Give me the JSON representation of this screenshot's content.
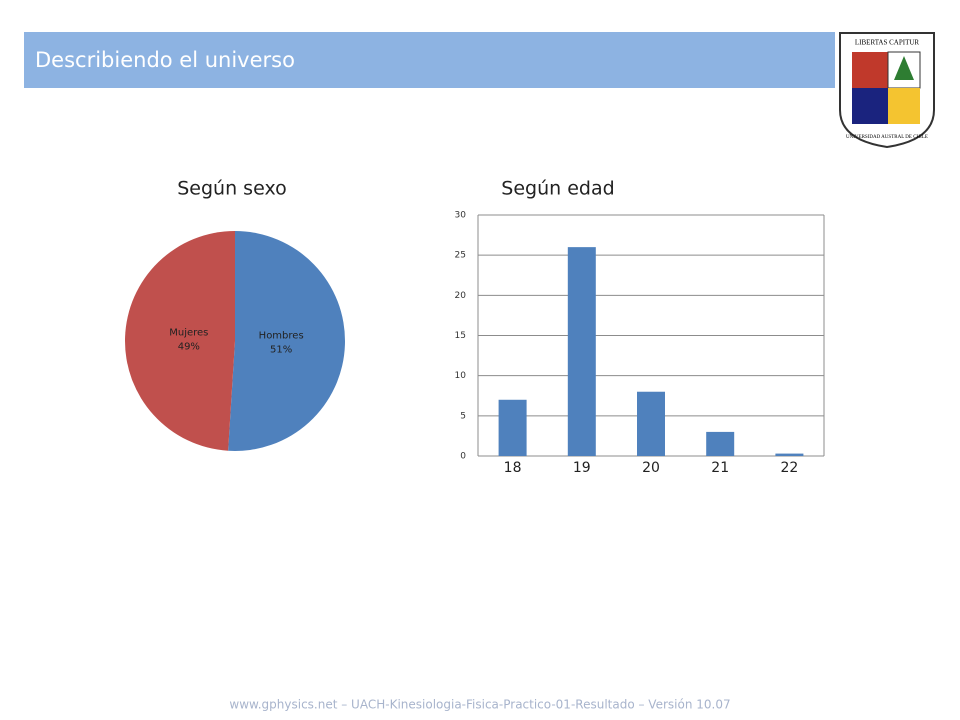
{
  "header": {
    "title": "Describiendo el universo"
  },
  "logo": {
    "motto": "LIBERTAS CAPITUR",
    "name": "UNIVERSIDAD AUSTRAL DE CHILE"
  },
  "chart_data": [
    {
      "type": "pie",
      "title": "Según sexo",
      "categories": [
        "Hombres",
        "Mujeres"
      ],
      "values": [
        51,
        49
      ],
      "value_labels": [
        "51%",
        "49%"
      ],
      "colors": [
        "#4f81bd",
        "#c0504d"
      ]
    },
    {
      "type": "bar",
      "title": "Según edad",
      "categories": [
        "18",
        "19",
        "20",
        "21",
        "22"
      ],
      "values": [
        7,
        26,
        8,
        3,
        0.3
      ],
      "color": "#4f81bd",
      "ylim": [
        0,
        30
      ],
      "yticks": [
        0,
        5,
        10,
        15,
        20,
        25,
        30
      ],
      "grid": true
    }
  ],
  "footer": "www.gphysics.net – UACH-Kinesiologia-Fisica-Practico-01-Resultado – Versión 10.07"
}
